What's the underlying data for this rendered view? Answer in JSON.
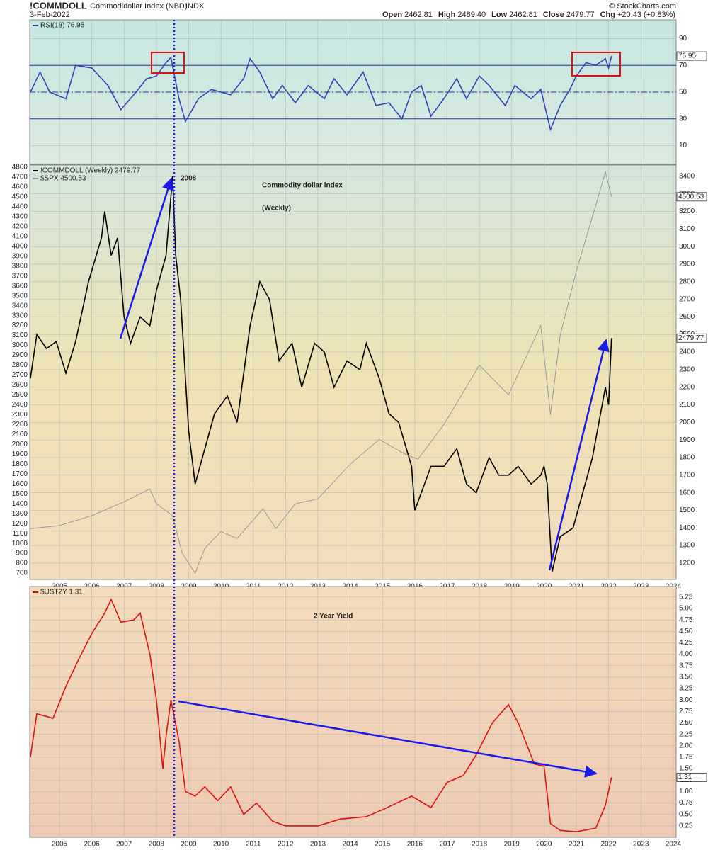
{
  "header": {
    "symbol": "!COMMDOLL",
    "description": "Commodidollar Index (NBD)",
    "exchange": "INDX",
    "date": "3-Feb-2022",
    "copyright": "© StockCharts.com",
    "quote": [
      {
        "label": "Open",
        "value": "2462.81"
      },
      {
        "label": "High",
        "value": "2489.40"
      },
      {
        "label": "Low",
        "value": "2462.81"
      },
      {
        "label": "Close",
        "value": "2479.77"
      },
      {
        "label": "Chg",
        "value": "+20.43 (+0.83%)"
      }
    ]
  },
  "chart_data": [
    {
      "type": "line",
      "xlim": [
        2004.08,
        2024.09
      ],
      "xticks": [
        2005,
        2006,
        2007,
        2008,
        2009,
        2010,
        2011,
        2012,
        2013,
        2014,
        2015,
        2016,
        2017,
        2018,
        2019,
        2020,
        2021,
        2022,
        2023,
        2024
      ],
      "show_xtick_labels": false,
      "ylim": [
        -4,
        104
      ],
      "yticks": [
        10,
        30,
        50,
        70,
        90
      ],
      "yaxis_side": "right",
      "grid": true,
      "background": [
        "#c6e6e2",
        "#dbeadf"
      ],
      "ref_lines": [
        {
          "value": 70,
          "style": "solid"
        },
        {
          "value": 50,
          "style": "dashdot"
        },
        {
          "value": 30,
          "style": "solid"
        }
      ],
      "series": [
        {
          "name": "RSI(18) 76.95",
          "color": "#3344bb",
          "last_label": "76.95",
          "x": [
            2004.1,
            2004.4,
            2004.7,
            2005.2,
            2005.5,
            2006.0,
            2006.5,
            2006.9,
            2007.3,
            2007.7,
            2008.0,
            2008.3,
            2008.45,
            2008.7,
            2008.9,
            2009.3,
            2009.7,
            2010.3,
            2010.7,
            2010.9,
            2011.2,
            2011.6,
            2011.9,
            2012.3,
            2012.7,
            2013.2,
            2013.5,
            2013.9,
            2014.4,
            2014.8,
            2015.2,
            2015.6,
            2015.9,
            2016.2,
            2016.5,
            2016.9,
            2017.3,
            2017.6,
            2018.0,
            2018.3,
            2018.8,
            2019.1,
            2019.6,
            2019.9,
            2020.2,
            2020.5,
            2020.8,
            2021.0,
            2021.3,
            2021.6,
            2021.9,
            2022.0,
            2022.09
          ],
          "values": [
            50,
            65,
            50,
            45,
            70,
            68,
            55,
            37,
            48,
            60,
            62,
            72,
            76,
            45,
            28,
            45,
            52,
            48,
            60,
            75,
            65,
            45,
            55,
            42,
            55,
            45,
            60,
            48,
            65,
            40,
            42,
            30,
            50,
            55,
            32,
            45,
            60,
            45,
            62,
            55,
            40,
            55,
            45,
            52,
            22,
            40,
            52,
            62,
            72,
            70,
            75,
            68,
            76.95
          ]
        }
      ]
    },
    {
      "type": "line",
      "xlim": [
        2004.08,
        2024.09
      ],
      "xticks": [
        2005,
        2006,
        2007,
        2008,
        2009,
        2010,
        2011,
        2012,
        2013,
        2014,
        2015,
        2016,
        2017,
        2018,
        2019,
        2020,
        2021,
        2022,
        2023,
        2024
      ],
      "show_xtick_labels": true,
      "ylim": [
        636,
        4821
      ],
      "yticks": [
        700,
        800,
        900,
        1000,
        1100,
        1200,
        1300,
        1400,
        1500,
        1600,
        1700,
        1800,
        1900,
        2000,
        2100,
        2200,
        2300,
        2400,
        2500,
        2600,
        2700,
        2800,
        2900,
        3000,
        3100,
        3200,
        3300,
        3400,
        3500,
        3600,
        3700,
        3800,
        3900,
        4000,
        4100,
        4200,
        4300,
        4400,
        4500,
        4600,
        4700,
        4800
      ],
      "yaxis_side": "left",
      "y2lim": [
        1107,
        3464
      ],
      "y2ticks": [
        1200,
        1300,
        1400,
        1500,
        1600,
        1700,
        1800,
        1900,
        2000,
        2100,
        2200,
        2300,
        2400,
        2500,
        2600,
        2700,
        2800,
        2900,
        3000,
        3100,
        3200,
        3300,
        3400
      ],
      "grid": true,
      "background": [
        "#d3e6dc",
        "#efe3b4",
        "#f2dcbd"
      ],
      "annotations": [
        {
          "text": "2008",
          "color": "#1a1ae6"
        },
        {
          "text": "Commodity dollar index",
          "color": "#111111"
        },
        {
          "text": "(Weekly)",
          "color": "#111111"
        }
      ],
      "series": [
        {
          "name": "!COMMDOLL (Weekly) 2479.77",
          "color": "#000000",
          "axis": "y2",
          "last_label": "2479.77",
          "x": [
            2004.1,
            2004.3,
            2004.6,
            2004.9,
            2005.2,
            2005.5,
            2005.9,
            2006.3,
            2006.4,
            2006.6,
            2006.8,
            2007.0,
            2007.2,
            2007.5,
            2007.8,
            2008.0,
            2008.3,
            2008.5,
            2008.6,
            2008.75,
            2009.0,
            2009.2,
            2009.5,
            2009.8,
            2010.2,
            2010.5,
            2010.9,
            2011.2,
            2011.5,
            2011.8,
            2012.2,
            2012.5,
            2012.9,
            2013.2,
            2013.5,
            2013.9,
            2014.3,
            2014.5,
            2014.9,
            2015.2,
            2015.5,
            2015.9,
            2016.0,
            2016.5,
            2016.9,
            2017.3,
            2017.6,
            2017.9,
            2018.3,
            2018.6,
            2018.9,
            2019.2,
            2019.6,
            2019.9,
            2020.0,
            2020.1,
            2020.25,
            2020.5,
            2020.9,
            2021.2,
            2021.5,
            2021.8,
            2021.9,
            2022.0,
            2022.09
          ],
          "values": [
            2250,
            2500,
            2420,
            2460,
            2280,
            2460,
            2800,
            3050,
            3200,
            2950,
            3050,
            2600,
            2450,
            2600,
            2550,
            2750,
            2950,
            3400,
            2950,
            2700,
            1950,
            1650,
            1850,
            2050,
            2150,
            2000,
            2550,
            2800,
            2700,
            2350,
            2450,
            2200,
            2450,
            2400,
            2200,
            2350,
            2300,
            2450,
            2250,
            2050,
            2000,
            1750,
            1500,
            1750,
            1750,
            1850,
            1650,
            1600,
            1800,
            1700,
            1700,
            1750,
            1650,
            1700,
            1750,
            1650,
            1150,
            1350,
            1400,
            1600,
            1800,
            2100,
            2200,
            2100,
            2479.77
          ]
        },
        {
          "name": "$SPX 4500.53",
          "color": "#999999",
          "axis": "y",
          "last_label": "4500.53",
          "x": [
            2004.1,
            2005.0,
            2006.0,
            2007.0,
            2007.8,
            2008.0,
            2008.5,
            2008.8,
            2009.2,
            2009.5,
            2010.0,
            2010.5,
            2011.3,
            2011.7,
            2012.3,
            2013.0,
            2014.0,
            2014.9,
            2015.7,
            2016.1,
            2016.9,
            2018.0,
            2018.9,
            2019.9,
            2020.2,
            2020.5,
            2021.0,
            2021.5,
            2021.9,
            2022.09
          ],
          "values": [
            1150,
            1180,
            1280,
            1420,
            1550,
            1400,
            1280,
            900,
            700,
            950,
            1120,
            1050,
            1350,
            1150,
            1400,
            1450,
            1800,
            2050,
            1900,
            1850,
            2200,
            2800,
            2500,
            3200,
            2300,
            3100,
            3750,
            4300,
            4750,
            4500.53
          ]
        }
      ]
    },
    {
      "type": "line",
      "xlim": [
        2004.08,
        2024.09
      ],
      "xticks": [
        2005,
        2006,
        2007,
        2008,
        2009,
        2010,
        2011,
        2012,
        2013,
        2014,
        2015,
        2016,
        2017,
        2018,
        2019,
        2020,
        2021,
        2022,
        2023,
        2024
      ],
      "show_xtick_labels": true,
      "ylim": [
        0,
        5.48
      ],
      "yticks": [
        0.25,
        {
          "value": 0.5,
          "label": "0.50"
        },
        0.75,
        {
          "value": 1,
          "label": "1.00"
        },
        1.25,
        {
          "value": 1.5,
          "label": "1.50"
        },
        1.75,
        {
          "value": 2,
          "label": "2.00"
        },
        2.25,
        {
          "value": 2.5,
          "label": "2.50"
        },
        2.75,
        {
          "value": 3,
          "label": "3.00"
        },
        3.25,
        {
          "value": 3.5,
          "label": "3.50"
        },
        3.75,
        {
          "value": 4,
          "label": "4.00"
        },
        4.25,
        {
          "value": 4.5,
          "label": "4.50"
        },
        4.75,
        {
          "value": 5,
          "label": "5.00"
        },
        5.25
      ],
      "yaxis_side": "right",
      "grid": true,
      "background": [
        "#f3dcbc",
        "#eecab4"
      ],
      "annotations": [
        {
          "text": "2 Year Yield",
          "color": "#e01010"
        }
      ],
      "series": [
        {
          "name": "$UST2Y 1.31",
          "color": "#dd1111",
          "last_label": "1.31",
          "x": [
            2004.1,
            2004.3,
            2004.8,
            2005.2,
            2005.6,
            2006.0,
            2006.4,
            2006.6,
            2006.9,
            2007.3,
            2007.5,
            2007.8,
            2008.0,
            2008.2,
            2008.3,
            2008.45,
            2008.7,
            2008.9,
            2009.2,
            2009.5,
            2009.9,
            2010.3,
            2010.7,
            2011.1,
            2011.6,
            2012.0,
            2013.0,
            2013.7,
            2014.5,
            2015.0,
            2015.9,
            2016.5,
            2017.0,
            2017.5,
            2017.9,
            2018.4,
            2018.9,
            2019.2,
            2019.7,
            2020.0,
            2020.2,
            2020.5,
            2021.0,
            2021.6,
            2021.9,
            2022.09
          ],
          "values": [
            1.75,
            2.7,
            2.6,
            3.3,
            3.9,
            4.45,
            4.9,
            5.2,
            4.7,
            4.75,
            4.9,
            4.0,
            3.0,
            1.5,
            2.2,
            3.0,
            2.1,
            1.0,
            0.9,
            1.1,
            0.8,
            1.1,
            0.5,
            0.75,
            0.35,
            0.25,
            0.25,
            0.4,
            0.45,
            0.6,
            0.9,
            0.65,
            1.2,
            1.35,
            1.8,
            2.5,
            2.9,
            2.5,
            1.6,
            1.55,
            0.3,
            0.15,
            0.12,
            0.2,
            0.7,
            1.31
          ]
        }
      ]
    }
  ]
}
